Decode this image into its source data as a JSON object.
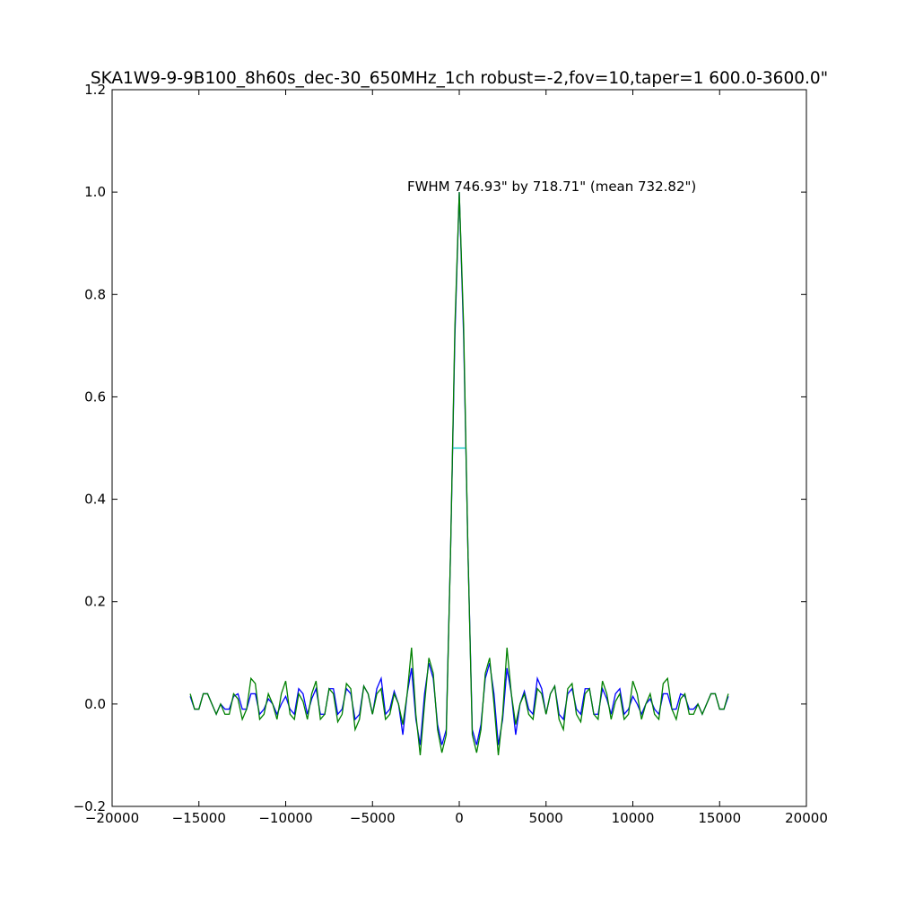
{
  "chart_data": {
    "type": "line",
    "title": "SKA1W9-9-9B100_8h60s_dec-30_650MHz_1ch robust=-2,fov=10,taper=1  600.0-3600.0\"",
    "annotation": "FWHM 746.93\" by 718.71\" (mean 732.82\")",
    "x": [
      -15500,
      -15250,
      -15000,
      -14750,
      -14500,
      -14250,
      -14000,
      -13750,
      -13500,
      -13250,
      -13000,
      -12750,
      -12500,
      -12250,
      -12000,
      -11750,
      -11500,
      -11250,
      -11000,
      -10750,
      -10500,
      -10250,
      -10000,
      -9750,
      -9500,
      -9250,
      -9000,
      -8750,
      -8500,
      -8250,
      -8000,
      -7750,
      -7500,
      -7250,
      -7000,
      -6750,
      -6500,
      -6250,
      -6000,
      -5750,
      -5500,
      -5250,
      -5000,
      -4750,
      -4500,
      -4250,
      -4000,
      -3750,
      -3500,
      -3250,
      -3000,
      -2750,
      -2500,
      -2250,
      -2000,
      -1750,
      -1500,
      -1250,
      -1000,
      -750,
      -500,
      -250,
      0,
      250,
      500,
      750,
      1000,
      1250,
      1500,
      1750,
      2000,
      2250,
      2500,
      2750,
      3000,
      3250,
      3500,
      3750,
      4000,
      4250,
      4500,
      4750,
      5000,
      5250,
      5500,
      5750,
      6000,
      6250,
      6500,
      6750,
      7000,
      7250,
      7500,
      7750,
      8000,
      8250,
      8500,
      8750,
      9000,
      9250,
      9500,
      9750,
      10000,
      10250,
      10500,
      10750,
      11000,
      11250,
      11500,
      11750,
      12000,
      12250,
      12500,
      12750,
      13000,
      13250,
      13500,
      13750,
      14000,
      14250,
      14500,
      14750,
      15000,
      15250,
      15500
    ],
    "series": [
      {
        "color": "#0000ff",
        "values": [
          0.015,
          -0.01,
          -0.01,
          0.02,
          0.02,
          0.0,
          -0.02,
          0.0,
          -0.01,
          -0.01,
          0.015,
          0.02,
          -0.01,
          -0.01,
          0.02,
          0.02,
          -0.02,
          -0.01,
          0.01,
          0.0,
          -0.02,
          0.0,
          0.015,
          -0.01,
          -0.02,
          0.03,
          0.02,
          -0.02,
          0.01,
          0.03,
          -0.02,
          -0.02,
          0.03,
          0.03,
          -0.02,
          -0.01,
          0.03,
          0.02,
          -0.03,
          -0.02,
          0.035,
          0.02,
          -0.02,
          0.03,
          0.05,
          -0.02,
          -0.01,
          0.025,
          0.0,
          -0.06,
          0.02,
          0.07,
          -0.03,
          -0.08,
          0.02,
          0.08,
          0.05,
          -0.04,
          -0.08,
          -0.05,
          0.3,
          0.72,
          1.0,
          0.72,
          0.3,
          -0.05,
          -0.08,
          -0.04,
          0.05,
          0.08,
          0.02,
          -0.08,
          -0.03,
          0.07,
          0.02,
          -0.06,
          0.0,
          0.025,
          -0.01,
          -0.02,
          0.05,
          0.03,
          -0.02,
          0.02,
          0.035,
          -0.02,
          -0.03,
          0.02,
          0.03,
          -0.01,
          -0.02,
          0.03,
          0.03,
          -0.02,
          -0.02,
          0.03,
          0.01,
          -0.02,
          0.02,
          0.03,
          -0.02,
          -0.01,
          0.015,
          0.0,
          -0.02,
          0.0,
          0.01,
          -0.01,
          -0.02,
          0.02,
          0.02,
          -0.01,
          -0.01,
          0.02,
          0.015,
          -0.01,
          -0.01,
          0.0,
          -0.02,
          0.0,
          0.02,
          0.02,
          -0.01,
          -0.01,
          0.015
        ]
      },
      {
        "color": "#008000",
        "values": [
          0.02,
          -0.01,
          -0.01,
          0.02,
          0.02,
          0.0,
          -0.02,
          0.0,
          -0.02,
          -0.02,
          0.02,
          0.01,
          -0.03,
          -0.01,
          0.05,
          0.04,
          -0.03,
          -0.02,
          0.02,
          0.0,
          -0.03,
          0.02,
          0.045,
          -0.02,
          -0.03,
          0.02,
          0.005,
          -0.03,
          0.02,
          0.045,
          -0.03,
          -0.02,
          0.03,
          0.02,
          -0.035,
          -0.02,
          0.04,
          0.03,
          -0.05,
          -0.03,
          0.035,
          0.02,
          -0.02,
          0.02,
          0.03,
          -0.03,
          -0.02,
          0.02,
          0.0,
          -0.04,
          0.02,
          0.11,
          -0.02,
          -0.1,
          0.0,
          0.09,
          0.06,
          -0.05,
          -0.095,
          -0.06,
          0.3,
          0.74,
          1.0,
          0.74,
          0.3,
          -0.06,
          -0.095,
          -0.05,
          0.06,
          0.09,
          0.0,
          -0.1,
          -0.02,
          0.11,
          0.02,
          -0.04,
          0.0,
          0.02,
          -0.02,
          -0.03,
          0.03,
          0.02,
          -0.02,
          0.02,
          0.035,
          -0.03,
          -0.05,
          0.03,
          0.04,
          -0.02,
          -0.035,
          0.02,
          0.03,
          -0.02,
          -0.03,
          0.045,
          0.02,
          -0.03,
          0.005,
          0.02,
          -0.03,
          -0.02,
          0.045,
          0.02,
          -0.03,
          0.0,
          0.02,
          -0.02,
          -0.03,
          0.04,
          0.05,
          -0.01,
          -0.03,
          0.01,
          0.02,
          -0.02,
          -0.02,
          0.0,
          -0.02,
          0.0,
          0.02,
          0.02,
          -0.01,
          -0.01,
          0.02
        ]
      }
    ],
    "fwhm_marker": {
      "x": [
        -370,
        370
      ],
      "values": [
        0.5,
        0.5
      ],
      "color": "#00bfbf"
    },
    "xlim": [
      -20000,
      20000
    ],
    "ylim": [
      -0.2,
      1.2
    ],
    "xticks": [
      {
        "value": -20000,
        "label": "−20000"
      },
      {
        "value": -15000,
        "label": "−15000"
      },
      {
        "value": -10000,
        "label": "−10000"
      },
      {
        "value": -5000,
        "label": "−5000"
      },
      0,
      5000,
      10000,
      15000,
      20000
    ],
    "yticks": [
      {
        "value": -0.2,
        "label": "−0.2"
      },
      {
        "value": 0,
        "label": "0.0"
      },
      0.2,
      0.4,
      0.6,
      0.8,
      {
        "value": 1,
        "label": "1.0"
      },
      1.2
    ],
    "grid": false
  }
}
